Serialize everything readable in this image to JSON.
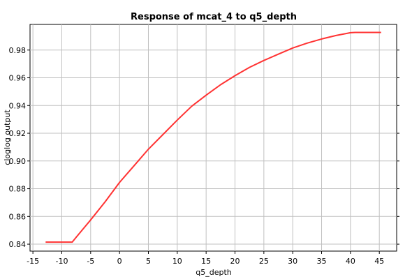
{
  "chart_data": {
    "type": "line",
    "title": "Response of mcat_4 to q5_depth",
    "xlabel": "q5_depth",
    "ylabel": "cloglog output",
    "xlim": [
      -15.5,
      48
    ],
    "ylim": [
      0.835,
      0.9985
    ],
    "xticks": [
      -15,
      -10,
      -5,
      0,
      5,
      10,
      15,
      20,
      25,
      30,
      35,
      40,
      45
    ],
    "yticks": [
      0.84,
      0.86,
      0.88,
      0.9,
      0.92,
      0.94,
      0.96,
      0.98
    ],
    "ytick_labels": [
      "0.84",
      "0.86",
      "0.88",
      "0.90",
      "0.92",
      "0.94",
      "0.96",
      "0.98"
    ],
    "grid": true,
    "series": [
      {
        "color": "#ff3333",
        "x": [
          -12.8,
          -8.2,
          -7.5,
          -5,
          -2.5,
          0,
          2.5,
          5,
          7.5,
          10,
          12.5,
          15,
          17.5,
          20,
          22.5,
          25,
          27.5,
          30,
          32.5,
          35,
          37.5,
          40,
          40.8,
          45.3
        ],
        "y": [
          0.8415,
          0.8415,
          0.845,
          0.8575,
          0.8705,
          0.8845,
          0.8965,
          0.9085,
          0.919,
          0.9295,
          0.9395,
          0.9475,
          0.955,
          0.9615,
          0.9675,
          0.9725,
          0.977,
          0.9815,
          0.985,
          0.988,
          0.9905,
          0.9925,
          0.9927,
          0.9927
        ]
      }
    ]
  }
}
